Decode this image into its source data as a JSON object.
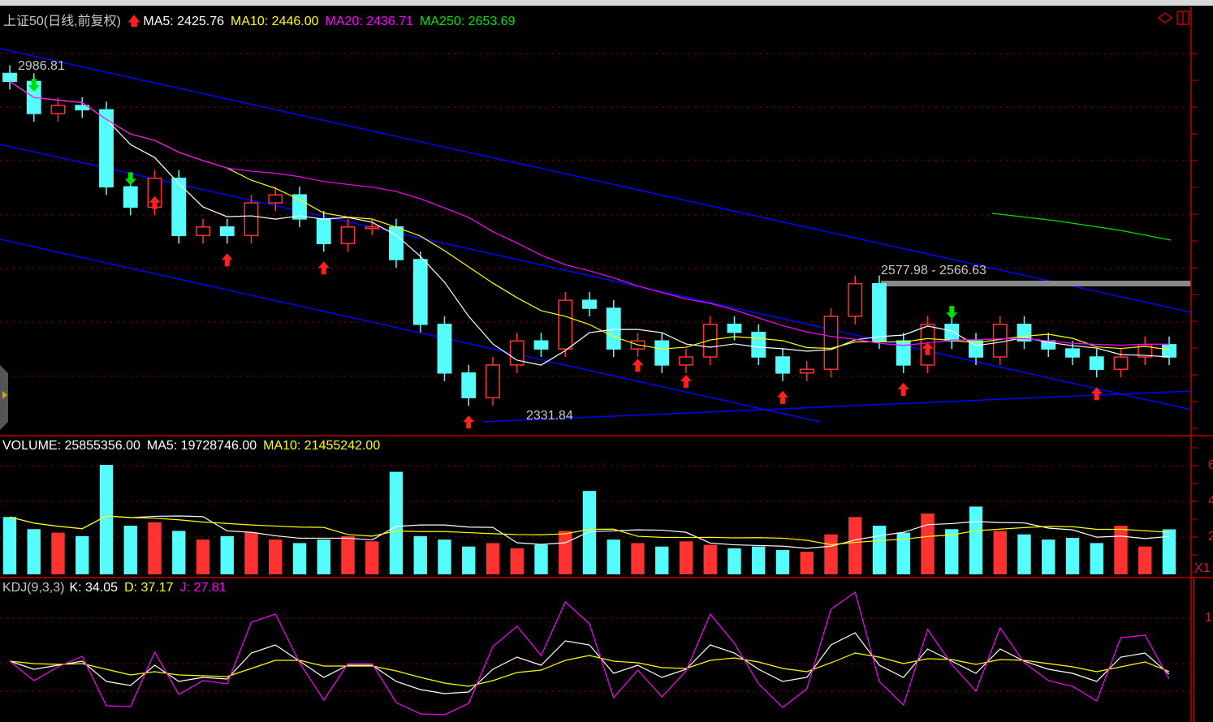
{
  "header": {
    "title": "上证50(日线,前复权)",
    "ma5": "MA5: 2425.76",
    "ma10": "MA10: 2446.00",
    "ma20": "MA20: 2436.71",
    "ma250": "MA250: 2653.69"
  },
  "volume_header": {
    "volume": "VOLUME: 25855356.00",
    "ma5": "MA5: 19728746.00",
    "ma10": "MA10: 21455242.00"
  },
  "kdj_header": {
    "name": "KDJ(9,3,3)",
    "k": "K: 34.05",
    "d": "D: 37.17",
    "j": "J: 27.81"
  },
  "annotations": {
    "high": "2986.81",
    "low": "2331.84",
    "band": "2577.98 - 2566.63"
  },
  "axis": {
    "vol_ticks": [
      "6",
      "4",
      "2"
    ],
    "vol_multiplier": "X1",
    "kdj_tick": "1"
  },
  "colors": {
    "up": "#ff3232",
    "down": "#54fcfc",
    "ma5": "#ffffff",
    "ma10": "#ffff00",
    "ma20": "#ff00ff",
    "ma250": "#00e000",
    "trend": "#0000ff",
    "frame": "#c00000"
  },
  "chart_data": [
    {
      "type": "candlestick",
      "title": "上证50(日线,前复权)",
      "ylim": [
        2297,
        3090
      ],
      "close": [
        2956,
        2896,
        2911,
        2903,
        2759,
        2721,
        2775,
        2668,
        2684,
        2668,
        2729,
        2744,
        2699,
        2653,
        2684,
        2684,
        2623,
        2502,
        2411,
        2365,
        2426,
        2471,
        2456,
        2547,
        2532,
        2456,
        2471,
        2426,
        2441,
        2502,
        2487,
        2441,
        2411,
        2418,
        2517,
        2578,
        2471,
        2426,
        2502,
        2471,
        2441,
        2502,
        2471,
        2456,
        2441,
        2418,
        2441,
        2464,
        2441
      ],
      "signals": [
        {
          "bar": 1,
          "type": "sell"
        },
        {
          "bar": 5,
          "type": "sell"
        },
        {
          "bar": 6,
          "type": "buy"
        },
        {
          "bar": 9,
          "type": "buy"
        },
        {
          "bar": 13,
          "type": "buy"
        },
        {
          "bar": 19,
          "type": "buy"
        },
        {
          "bar": 26,
          "type": "buy"
        },
        {
          "bar": 28,
          "type": "buy"
        },
        {
          "bar": 32,
          "type": "buy"
        },
        {
          "bar": 37,
          "type": "buy"
        },
        {
          "bar": 38,
          "type": "buy"
        },
        {
          "bar": 39,
          "type": "sell"
        },
        {
          "bar": 45,
          "type": "buy"
        }
      ]
    },
    {
      "type": "bar",
      "title": "VOLUME",
      "ylim": [
        0,
        7
      ],
      "values": [
        3.3,
        2.6,
        2.4,
        2.2,
        6.3,
        2.8,
        3.0,
        2.5,
        2.0,
        2.2,
        2.4,
        2.0,
        1.8,
        2.0,
        2.2,
        1.9,
        5.9,
        2.2,
        2.0,
        1.6,
        1.8,
        1.5,
        1.7,
        2.5,
        4.8,
        2.0,
        1.8,
        1.6,
        1.9,
        1.7,
        1.5,
        1.6,
        1.4,
        1.3,
        2.3,
        3.3,
        2.8,
        2.4,
        3.5,
        2.6,
        3.9,
        2.5,
        2.3,
        2.0,
        2.1,
        1.8,
        2.8,
        1.6,
        2.59
      ]
    },
    {
      "type": "line",
      "title": "KDJ(9,3,3)",
      "ylim": [
        -20,
        140
      ],
      "series": [
        {
          "name": "K",
          "color": "#ffffff",
          "values": [
            50,
            40,
            45,
            50,
            25,
            20,
            45,
            25,
            30,
            28,
            60,
            70,
            50,
            30,
            45,
            45,
            25,
            15,
            10,
            12,
            40,
            55,
            45,
            75,
            70,
            35,
            45,
            30,
            40,
            70,
            60,
            40,
            25,
            30,
            70,
            85,
            45,
            30,
            65,
            50,
            35,
            65,
            50,
            40,
            35,
            25,
            55,
            60,
            34.05
          ]
        },
        {
          "name": "D",
          "color": "#ffff00",
          "values": [
            50,
            47,
            46,
            47,
            40,
            33,
            37,
            33,
            32,
            31,
            41,
            51,
            51,
            44,
            44,
            44,
            38,
            30,
            23,
            19,
            26,
            36,
            39,
            51,
            57,
            50,
            48,
            42,
            41,
            51,
            54,
            49,
            41,
            37,
            48,
            60,
            55,
            47,
            53,
            52,
            46,
            52,
            51,
            47,
            43,
            37,
            43,
            49,
            37.17
          ]
        },
        {
          "name": "J",
          "color": "#ff00ff",
          "values": [
            50,
            26,
            43,
            56,
            -5,
            -6,
            61,
            9,
            26,
            22,
            98,
            108,
            48,
            2,
            47,
            47,
            -1,
            -15,
            -16,
            -2,
            68,
            93,
            57,
            123,
            96,
            5,
            39,
            6,
            38,
            108,
            72,
            22,
            -7,
            16,
            114,
            135,
            25,
            -4,
            89,
            46,
            13,
            91,
            48,
            26,
            19,
            1,
            79,
            82,
            27.81
          ]
        }
      ]
    }
  ]
}
